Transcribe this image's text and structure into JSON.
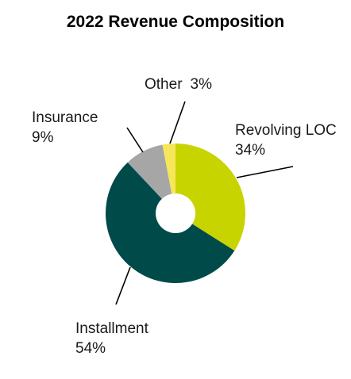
{
  "chart_data": {
    "type": "pie",
    "style": "donut",
    "title": "2022 Revenue Composition",
    "start_angle_deg": 0,
    "direction": "clockwise",
    "slices": [
      {
        "label": "Revolving LOC",
        "value": 34,
        "value_label": "34%",
        "color": "#c8d400"
      },
      {
        "label": "Installment",
        "value": 54,
        "value_label": "54%",
        "color": "#004a4a"
      },
      {
        "label": "Insurance",
        "value": 9,
        "value_label": "9%",
        "color": "#a6a6a6"
      },
      {
        "label": "Other",
        "value": 3,
        "value_label": "3%",
        "color": "#f5e65a"
      }
    ],
    "legend": "none",
    "grid": false
  }
}
